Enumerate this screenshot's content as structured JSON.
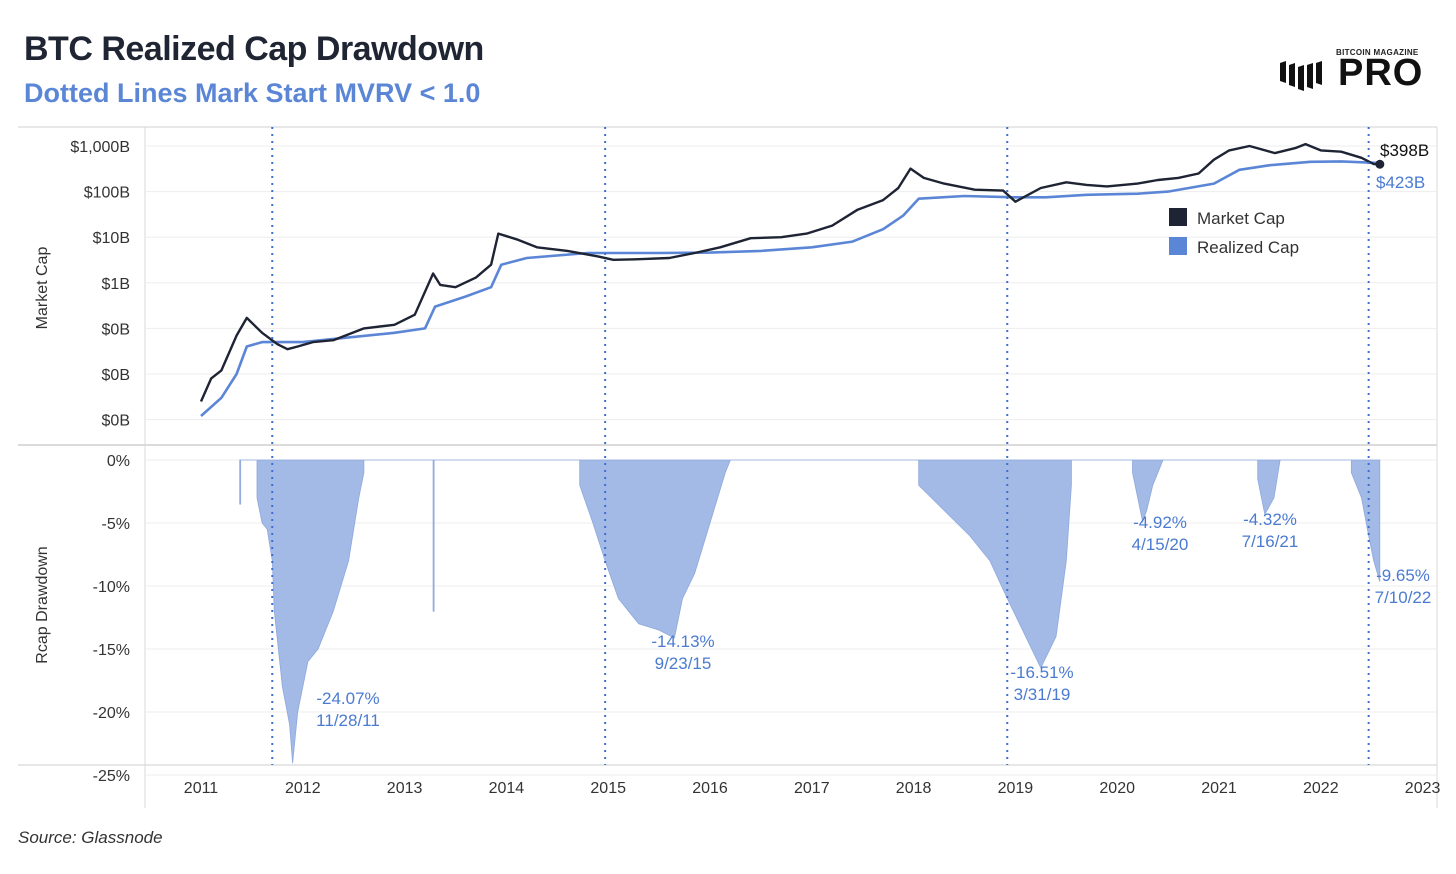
{
  "header": {
    "title": "BTC Realized Cap Drawdown",
    "subtitle": "Dotted Lines Mark Start MVRV < 1.0",
    "source": "Source: Glassnode"
  },
  "logo": {
    "top_text": "BITCOIN MAGAZINE",
    "main_text": "PRO"
  },
  "colors": {
    "market_cap": "#1e2433",
    "realized_cap": "#5b86d6",
    "drawdown_fill": "#a3b9e6",
    "annotation": "#4b7bd1",
    "title": "#1f2533"
  },
  "chart_data": [
    {
      "type": "line",
      "ylabel": "Market Cap",
      "yscale": "log",
      "y_tick_labels": [
        "$1,000B",
        "$100B",
        "$10B",
        "$1B",
        "$0B",
        "$0B",
        "$0B"
      ],
      "y_tick_values_billion": [
        1000,
        100,
        10,
        1,
        0.1,
        0.01,
        0.001
      ],
      "legend": [
        "Market Cap",
        "Realized Cap"
      ],
      "legend_position": "right",
      "end_labels": {
        "market_cap": "$398B",
        "realized_cap": "$423B"
      },
      "series": [
        {
          "name": "Market Cap",
          "x": [
            2011.0,
            2011.1,
            2011.2,
            2011.35,
            2011.45,
            2011.6,
            2011.75,
            2011.85,
            2011.95,
            2012.1,
            2012.3,
            2012.6,
            2012.9,
            2013.1,
            2013.28,
            2013.35,
            2013.5,
            2013.7,
            2013.85,
            2013.92,
            2014.1,
            2014.3,
            2014.6,
            2014.9,
            2015.05,
            2015.3,
            2015.6,
            2015.85,
            2016.1,
            2016.4,
            2016.7,
            2016.95,
            2017.2,
            2017.45,
            2017.7,
            2017.85,
            2017.97,
            2018.1,
            2018.3,
            2018.6,
            2018.88,
            2019.0,
            2019.25,
            2019.5,
            2019.7,
            2019.9,
            2020.2,
            2020.4,
            2020.6,
            2020.8,
            2020.95,
            2021.1,
            2021.3,
            2021.55,
            2021.75,
            2021.85,
            2022.0,
            2022.2,
            2022.4,
            2022.52,
            2022.58
          ],
          "values": [
            0.0025,
            0.008,
            0.012,
            0.07,
            0.17,
            0.08,
            0.045,
            0.035,
            0.04,
            0.05,
            0.055,
            0.1,
            0.12,
            0.2,
            1.6,
            0.9,
            0.8,
            1.3,
            2.5,
            12,
            9,
            6,
            5,
            3.8,
            3.2,
            3.3,
            3.5,
            4.5,
            6,
            9.5,
            10,
            12,
            18,
            40,
            65,
            120,
            320,
            200,
            150,
            110,
            105,
            60,
            120,
            160,
            140,
            130,
            150,
            180,
            200,
            250,
            500,
            800,
            1000,
            700,
            900,
            1100,
            800,
            750,
            550,
            400,
            398
          ]
        },
        {
          "name": "Realized Cap",
          "x": [
            2011.0,
            2011.2,
            2011.35,
            2011.45,
            2011.6,
            2011.85,
            2012.0,
            2012.5,
            2012.9,
            2013.2,
            2013.3,
            2013.6,
            2013.85,
            2013.95,
            2014.2,
            2014.8,
            2015.5,
            2016.0,
            2016.5,
            2017.0,
            2017.4,
            2017.7,
            2017.9,
            2018.05,
            2018.5,
            2019.0,
            2019.3,
            2019.7,
            2020.2,
            2020.5,
            2020.95,
            2021.2,
            2021.5,
            2021.9,
            2022.2,
            2022.5,
            2022.58
          ],
          "values": [
            0.0012,
            0.003,
            0.01,
            0.04,
            0.05,
            0.05,
            0.05,
            0.065,
            0.08,
            0.1,
            0.3,
            0.5,
            0.8,
            2.5,
            3.5,
            4.5,
            4.5,
            4.6,
            5,
            6,
            8,
            15,
            30,
            70,
            80,
            75,
            75,
            85,
            90,
            100,
            150,
            300,
            380,
            450,
            460,
            430,
            423
          ]
        }
      ]
    },
    {
      "type": "area",
      "ylabel": "Rcap Drawdown",
      "y_tick_labels": [
        "0%",
        "-5%",
        "-10%",
        "-15%",
        "-20%",
        "-25%"
      ],
      "y_tick_values": [
        0,
        -5,
        -10,
        -15,
        -20,
        -25
      ],
      "x_tick_labels": [
        "2011",
        "2012",
        "2013",
        "2014",
        "2015",
        "2016",
        "2017",
        "2018",
        "2019",
        "2020",
        "2021",
        "2022",
        "2023"
      ],
      "mvrv_start_dates": [
        2011.7,
        2014.97,
        2018.92,
        2022.47
      ],
      "series": [
        {
          "name": "Rcap Drawdown",
          "x": [
            2011.38,
            2011.38,
            2011.39,
            2011.39,
            2011.55,
            2011.55,
            2011.6,
            2011.65,
            2011.7,
            2011.72,
            2011.8,
            2011.87,
            2011.9,
            2011.95,
            2012.05,
            2012.15,
            2012.3,
            2012.45,
            2012.55,
            2012.6,
            2012.6,
            2013.28,
            2013.28,
            2013.29,
            2013.29,
            2014.72,
            2014.72,
            2014.85,
            2014.97,
            2015.1,
            2015.3,
            2015.5,
            2015.65,
            2015.73,
            2015.85,
            2016.0,
            2016.15,
            2016.2,
            2016.2,
            2018.05,
            2018.05,
            2018.3,
            2018.55,
            2018.75,
            2018.92,
            2019.1,
            2019.25,
            2019.4,
            2019.5,
            2019.55,
            2019.55,
            2020.15,
            2020.15,
            2020.25,
            2020.29,
            2020.35,
            2020.45,
            2020.45,
            2021.38,
            2021.38,
            2021.45,
            2021.54,
            2021.6,
            2021.6,
            2022.3,
            2022.3,
            2022.4,
            2022.47,
            2022.52,
            2022.58,
            2022.58
          ],
          "values": [
            0,
            -3.5,
            -3.5,
            0,
            0,
            -3,
            -5,
            -5.5,
            -8,
            -12,
            -18,
            -21,
            -24.07,
            -20,
            -16,
            -15,
            -12,
            -8,
            -3,
            -1,
            0,
            0,
            -12,
            -12,
            0,
            0,
            -2,
            -5,
            -8,
            -11,
            -13,
            -13.5,
            -14.13,
            -11,
            -9,
            -5,
            -1,
            0,
            0,
            0,
            -2,
            -4,
            -6,
            -8,
            -11,
            -14,
            -16.51,
            -14,
            -8,
            -2,
            0,
            0,
            -1,
            -4.92,
            -4,
            -2,
            0,
            0,
            0,
            -1.5,
            -4.32,
            -3,
            0,
            0,
            0,
            -1,
            -3,
            -6,
            -8,
            -9.65,
            0
          ]
        }
      ]
    }
  ],
  "annotations": [
    {
      "pct": "-24.07%",
      "date": "11/28/11"
    },
    {
      "pct": "-14.13%",
      "date": "9/23/15"
    },
    {
      "pct": "-16.51%",
      "date": "3/31/19"
    },
    {
      "pct": "-4.92%",
      "date": "4/15/20"
    },
    {
      "pct": "-4.32%",
      "date": "7/16/21"
    },
    {
      "pct": "-9.65%",
      "date": "7/10/22"
    }
  ]
}
